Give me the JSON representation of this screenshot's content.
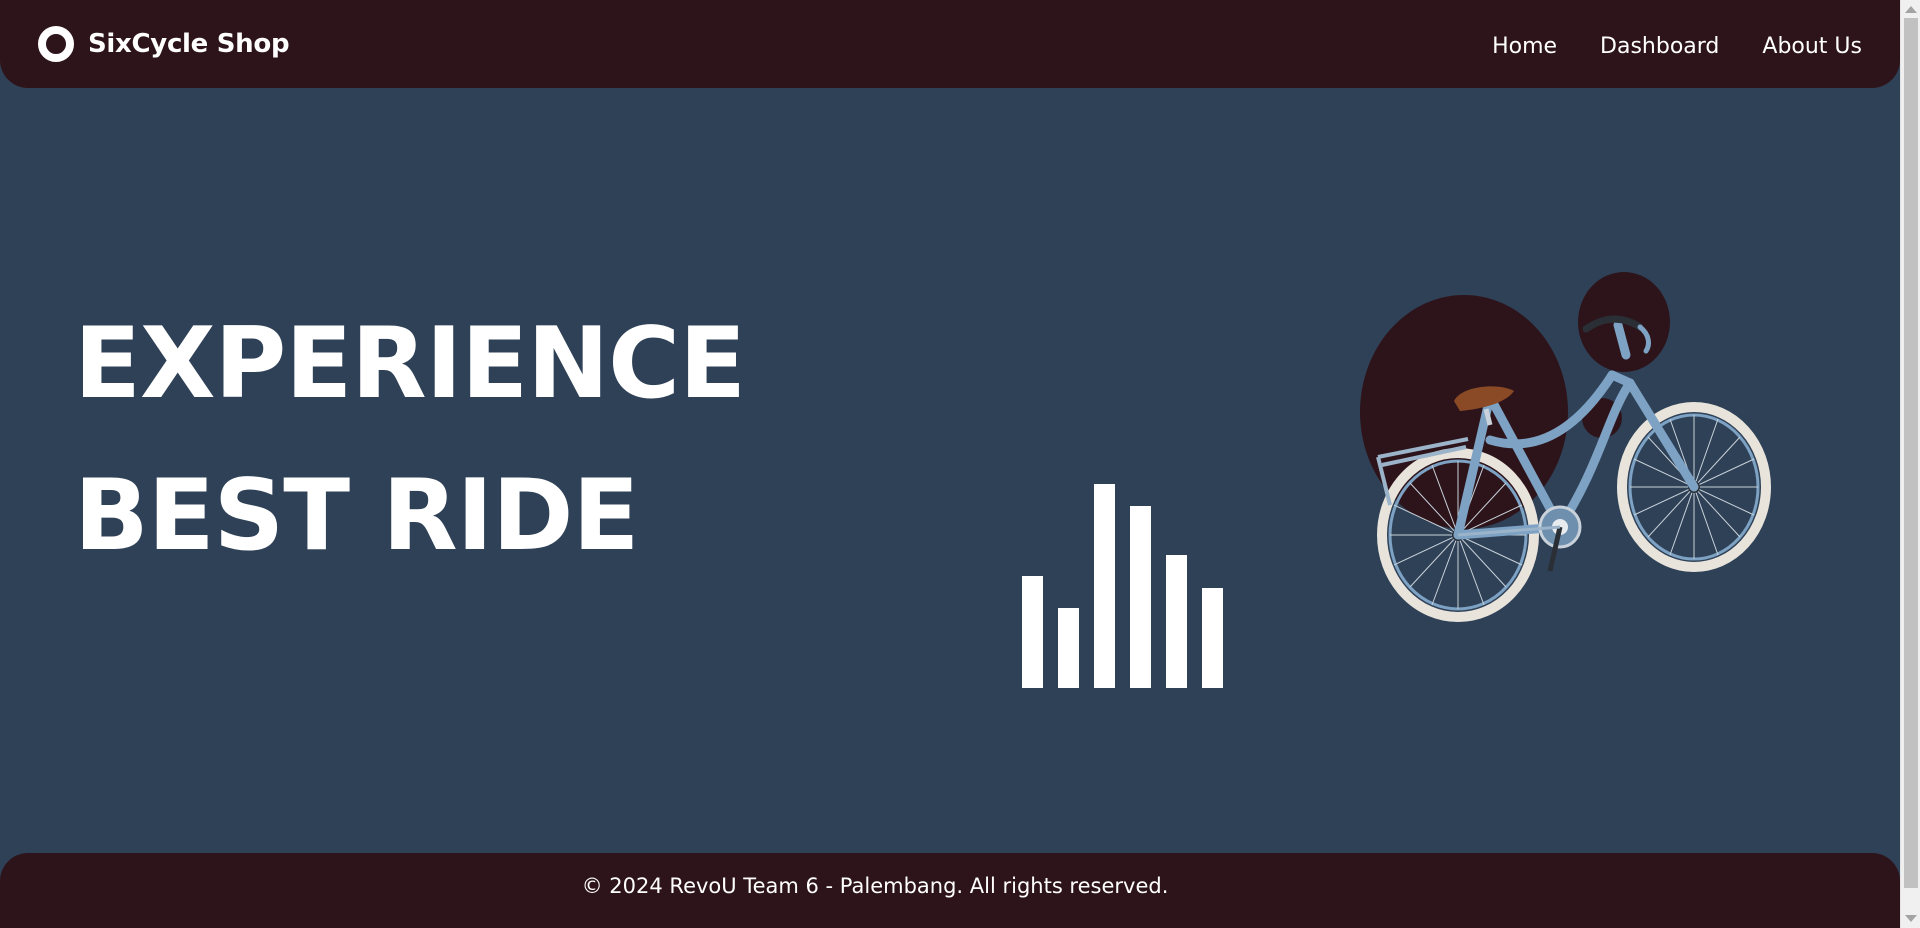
{
  "brand": {
    "name": "SixCycle Shop",
    "icon": "ring-logo-icon"
  },
  "nav": {
    "items": [
      {
        "label": "Home"
      },
      {
        "label": "Dashboard"
      },
      {
        "label": "About Us"
      }
    ]
  },
  "hero": {
    "line1": "EXPERIENCE",
    "line2": "BEST RIDE",
    "bars_icon": "equalizer-bars-icon",
    "bar_levels": [
      0.55,
      0.39,
      1.0,
      0.89,
      0.65,
      0.49
    ],
    "image": "bicycle-illustration"
  },
  "footer": {
    "text": "© 2024 RevoU Team 6 - Palembang. All rights reserved."
  },
  "colors": {
    "background": "#2f4157",
    "header_footer": "#2d141b",
    "accent_circles": "#2d141b",
    "text": "#ffffff",
    "bike_frame": "#7da2c4"
  }
}
